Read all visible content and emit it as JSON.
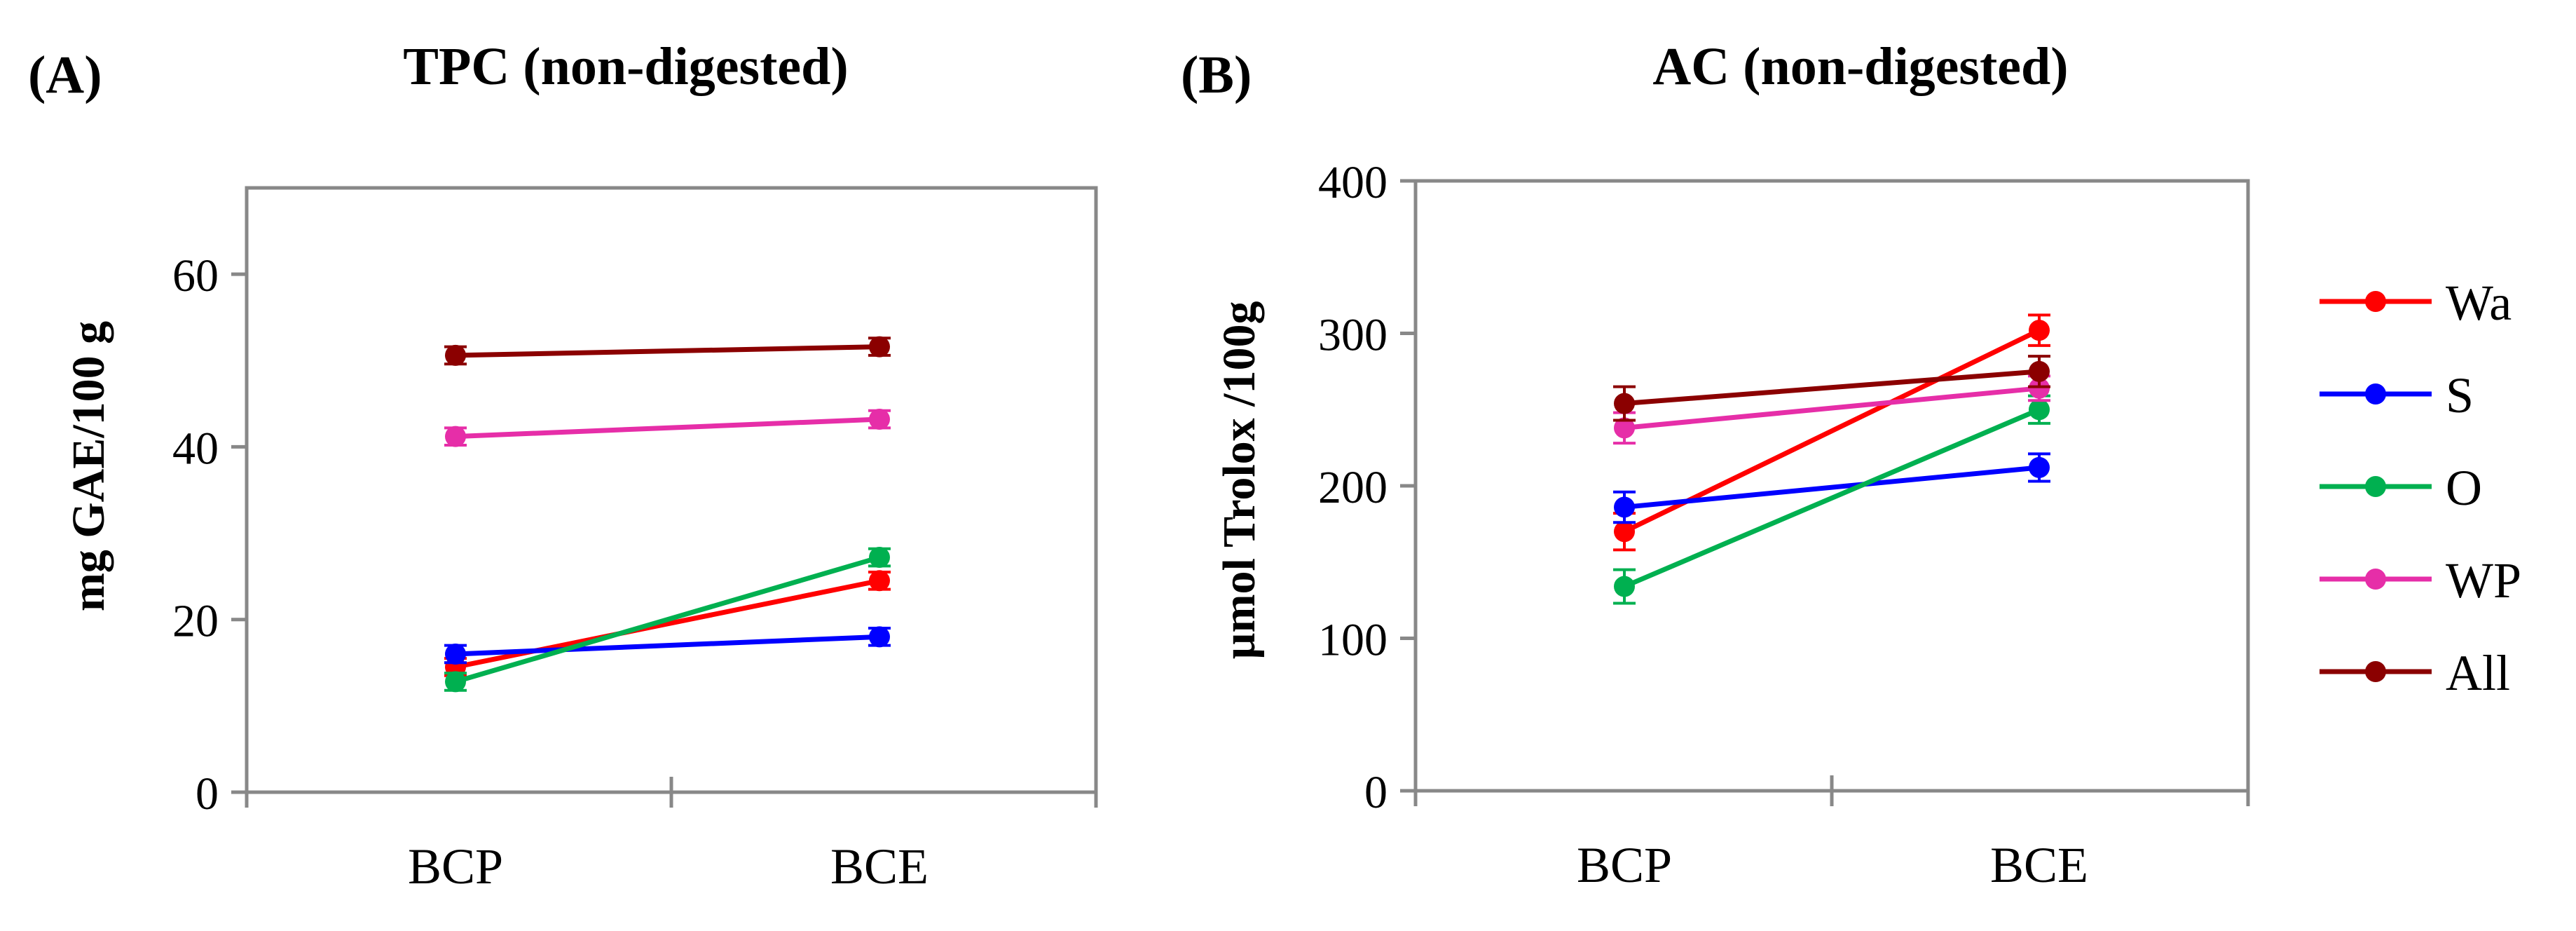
{
  "chart_data": [
    {
      "type": "line",
      "panel_label": "(A)",
      "title": "TPC (non-digested)",
      "xlabel": "",
      "ylabel": "mg GAE/100 g",
      "categories": [
        "BCP",
        "BCE"
      ],
      "ylim": [
        0,
        70
      ],
      "yticks": [
        0,
        20,
        40,
        60
      ],
      "grid": false,
      "series": [
        {
          "name": "Wa",
          "color": "#ff0000",
          "values": [
            14.5,
            24.5
          ],
          "errors": [
            1.0,
            1.0
          ]
        },
        {
          "name": "S",
          "color": "#0000ff",
          "values": [
            16.0,
            18.0
          ],
          "errors": [
            1.0,
            1.0
          ]
        },
        {
          "name": "O",
          "color": "#00b050",
          "values": [
            12.8,
            27.2
          ],
          "errors": [
            1.0,
            1.0
          ]
        },
        {
          "name": "WP",
          "color": "#e62ea8",
          "values": [
            41.2,
            43.2
          ],
          "errors": [
            1.0,
            1.0
          ]
        },
        {
          "name": "All",
          "color": "#8b0000",
          "values": [
            50.6,
            51.6
          ],
          "errors": [
            1.0,
            1.0
          ]
        }
      ]
    },
    {
      "type": "line",
      "panel_label": "(B)",
      "title": "AC (non-digested)",
      "xlabel": "",
      "ylabel": "µmol Trolox /100g",
      "categories": [
        "BCP",
        "BCE"
      ],
      "ylim": [
        0,
        400
      ],
      "yticks": [
        0,
        100,
        200,
        300,
        400
      ],
      "grid": false,
      "legend_position": "right",
      "series": [
        {
          "name": "Wa",
          "color": "#ff0000",
          "values": [
            170,
            302
          ],
          "errors": [
            12,
            10
          ]
        },
        {
          "name": "S",
          "color": "#0000ff",
          "values": [
            186,
            212
          ],
          "errors": [
            10,
            9
          ]
        },
        {
          "name": "O",
          "color": "#00b050",
          "values": [
            134,
            250
          ],
          "errors": [
            11,
            9
          ]
        },
        {
          "name": "WP",
          "color": "#e62ea8",
          "values": [
            238,
            264
          ],
          "errors": [
            10,
            8
          ]
        },
        {
          "name": "All",
          "color": "#8b0000",
          "values": [
            254,
            275
          ],
          "errors": [
            11,
            10
          ]
        }
      ]
    }
  ],
  "legend": {
    "entries": [
      {
        "name": "Wa",
        "color": "#ff0000"
      },
      {
        "name": "S",
        "color": "#0000ff"
      },
      {
        "name": "O",
        "color": "#00b050"
      },
      {
        "name": "WP",
        "color": "#e62ea8"
      },
      {
        "name": "All",
        "color": "#8b0000"
      }
    ]
  }
}
